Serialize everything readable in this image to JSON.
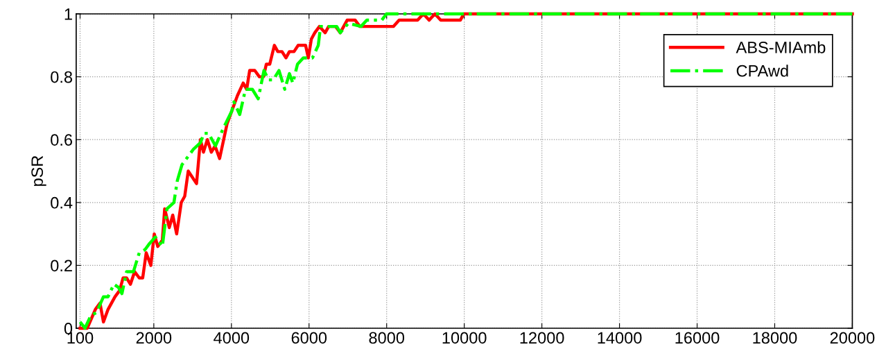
{
  "chart_data": {
    "type": "line",
    "ylabel": "pSR",
    "xlim": [
      0,
      20000
    ],
    "xticks": [
      100,
      2000,
      4000,
      6000,
      8000,
      10000,
      12000,
      14000,
      16000,
      18000,
      20000
    ],
    "ylim": [
      0,
      1
    ],
    "yticks": [
      0,
      0.2,
      0.4,
      0.6,
      0.8,
      1
    ],
    "grid": true,
    "legend": "top right",
    "series": [
      {
        "name": "ABS-MIAmb",
        "color": "#ff0000",
        "line_style": "solid",
        "x": [
          100,
          286,
          494,
          613,
          702,
          821,
          1000,
          1119,
          1208,
          1298,
          1398,
          1506,
          1625,
          1714,
          1804,
          1923,
          2012,
          2101,
          2220,
          2280,
          2399,
          2488,
          2589,
          2708,
          2797,
          2887,
          3101,
          3202,
          3279,
          3380,
          3482,
          3577,
          3696,
          3887,
          4006,
          4155,
          4304,
          4393,
          4470,
          4601,
          4720,
          4827,
          4899,
          4988,
          5107,
          5196,
          5304,
          5405,
          5494,
          5613,
          5720,
          5911,
          5982,
          6060,
          6149,
          6268,
          6416,
          6506,
          6684,
          6804,
          6982,
          7190,
          7309,
          8173,
          8321,
          8797,
          8946,
          9095,
          9244,
          9393,
          9898,
          9988,
          20000
        ],
        "values": [
          0,
          0,
          0.06,
          0.08,
          0.02,
          0.06,
          0.1,
          0.12,
          0.16,
          0.16,
          0.14,
          0.18,
          0.16,
          0.16,
          0.24,
          0.2,
          0.3,
          0.26,
          0.28,
          0.38,
          0.32,
          0.36,
          0.3,
          0.4,
          0.42,
          0.5,
          0.46,
          0.6,
          0.56,
          0.6,
          0.56,
          0.58,
          0.54,
          0.65,
          0.69,
          0.74,
          0.78,
          0.76,
          0.82,
          0.82,
          0.8,
          0.8,
          0.84,
          0.84,
          0.9,
          0.88,
          0.88,
          0.86,
          0.88,
          0.88,
          0.9,
          0.9,
          0.86,
          0.92,
          0.94,
          0.96,
          0.94,
          0.96,
          0.96,
          0.94,
          0.98,
          0.98,
          0.96,
          0.96,
          0.98,
          0.98,
          1,
          0.98,
          1,
          0.98,
          0.98,
          1,
          1
        ]
      },
      {
        "name": "CPAwd",
        "color": "#00ff00",
        "line_style": "dashdot",
        "x": [
          100,
          226,
          375,
          523,
          702,
          821,
          970,
          1089,
          1179,
          1298,
          1476,
          1625,
          1774,
          1893,
          2041,
          2220,
          2339,
          2518,
          2607,
          2726,
          2845,
          3024,
          3202,
          3291,
          3411,
          3589,
          3768,
          4006,
          4065,
          4214,
          4363,
          4540,
          4690,
          4839,
          4958,
          5077,
          5226,
          5375,
          5494,
          5583,
          5703,
          5851,
          6089,
          6238,
          6297,
          6714,
          6804,
          7012,
          7339,
          7488,
          7875,
          7994,
          20000
        ],
        "values": [
          0.02,
          0,
          0.04,
          0.05,
          0.1,
          0.1,
          0.14,
          0.13,
          0.11,
          0.18,
          0.18,
          0.24,
          0.25,
          0.27,
          0.29,
          0.26,
          0.38,
          0.4,
          0.47,
          0.52,
          0.54,
          0.57,
          0.59,
          0.62,
          0.62,
          0.58,
          0.63,
          0.69,
          0.72,
          0.68,
          0.76,
          0.76,
          0.73,
          0.82,
          0.79,
          0.79,
          0.82,
          0.76,
          0.81,
          0.78,
          0.84,
          0.86,
          0.86,
          0.9,
          0.96,
          0.96,
          0.94,
          0.97,
          0.96,
          0.98,
          0.98,
          1,
          1
        ]
      }
    ]
  }
}
